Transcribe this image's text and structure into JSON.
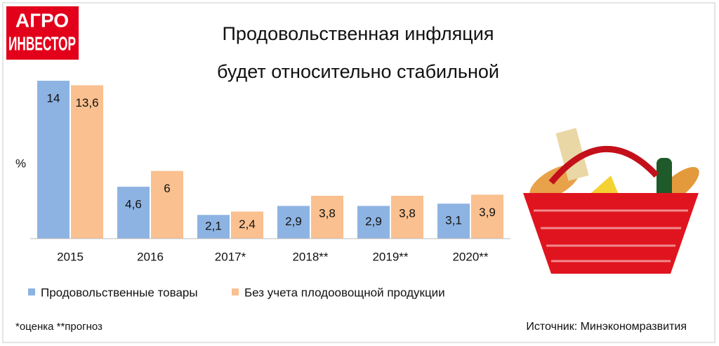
{
  "logo": [
    "АГРО",
    "ИНВЕСТОР"
  ],
  "chart_data": {
    "type": "bar",
    "title": [
      "Продовольственная инфляция",
      "будет относительно стабильной"
    ],
    "y_label": "%",
    "categories": [
      "2015",
      "2016",
      "2017*",
      "2018**",
      "2019**",
      "2020**"
    ],
    "series": [
      {
        "name": "Продовольственные товары",
        "color": "#8db3e2",
        "values": [
          14,
          4.6,
          2.1,
          2.9,
          2.9,
          3.1
        ],
        "value_labels": [
          "14",
          "4,6",
          "2,1",
          "2,9",
          "2,9",
          "3,1"
        ]
      },
      {
        "name": "Без учета плодоовощной продукции",
        "color": "#fac08f",
        "values": [
          13.6,
          6,
          2.4,
          3.8,
          3.8,
          3.9
        ],
        "value_labels": [
          "13,6",
          "6",
          "2,4",
          "3,8",
          "3,8",
          "3,9"
        ]
      }
    ],
    "ylim": [
      0,
      15
    ],
    "footnote": "*оценка    **прогноз",
    "source": "Источник: Минэкономразвития"
  }
}
